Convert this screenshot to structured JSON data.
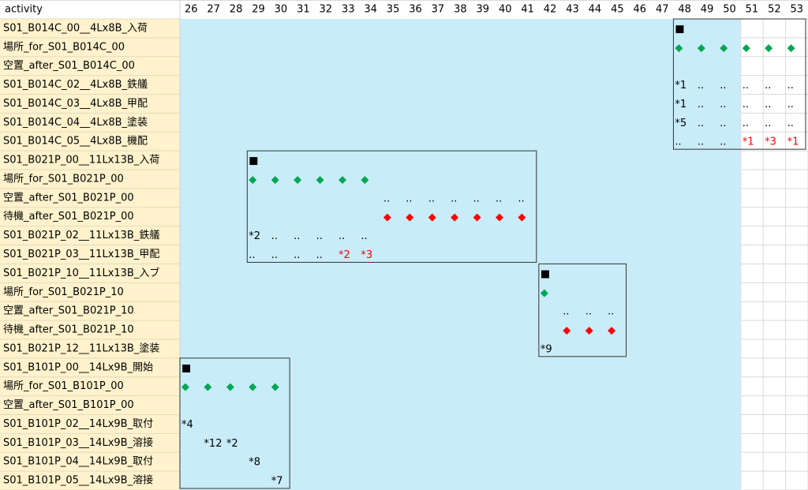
{
  "header": {
    "activity": "activity",
    "days": [
      26,
      27,
      28,
      29,
      30,
      31,
      32,
      33,
      34,
      35,
      36,
      37,
      38,
      39,
      40,
      41,
      42,
      43,
      44,
      45,
      46,
      47,
      48,
      49,
      50,
      51,
      52,
      53
    ]
  },
  "rows": [
    {
      "activity": "S01_B014C_00__4Lx8B_入荷",
      "cells": [
        null,
        null,
        null,
        null,
        null,
        null,
        null,
        null,
        null,
        null,
        null,
        null,
        null,
        null,
        null,
        null,
        null,
        null,
        null,
        null,
        null,
        null,
        "■",
        null,
        null,
        null,
        null,
        null
      ]
    },
    {
      "activity": "場所_for_S01_B014C_00",
      "cells": [
        null,
        null,
        null,
        null,
        null,
        null,
        null,
        null,
        null,
        null,
        null,
        null,
        null,
        null,
        null,
        null,
        null,
        null,
        null,
        null,
        null,
        null,
        {
          "text": "◆",
          "color": "#00a651"
        },
        {
          "text": "◆",
          "color": "#00a651"
        },
        {
          "text": "◆",
          "color": "#00a651"
        },
        {
          "text": "◆",
          "color": "#00a651"
        },
        {
          "text": "◆",
          "color": "#00a651"
        },
        {
          "text": "◆",
          "color": "#00a651"
        }
      ]
    },
    {
      "activity": "空置_after_S01_B014C_00",
      "cells": [
        null,
        null,
        null,
        null,
        null,
        null,
        null,
        null,
        null,
        null,
        null,
        null,
        null,
        null,
        null,
        null,
        null,
        null,
        null,
        null,
        null,
        null,
        null,
        null,
        null,
        null,
        null,
        null
      ]
    },
    {
      "activity": "S01_B014C_02__4Lx8B_鉄艤",
      "cells": [
        null,
        null,
        null,
        null,
        null,
        null,
        null,
        null,
        null,
        null,
        null,
        null,
        null,
        null,
        null,
        null,
        null,
        null,
        null,
        null,
        null,
        null,
        "*1",
        "..",
        "..",
        "..",
        "..",
        ".."
      ]
    },
    {
      "activity": "S01_B014C_03__4Lx8B_甲配",
      "cells": [
        null,
        null,
        null,
        null,
        null,
        null,
        null,
        null,
        null,
        null,
        null,
        null,
        null,
        null,
        null,
        null,
        null,
        null,
        null,
        null,
        null,
        null,
        "*1",
        "..",
        "..",
        "..",
        "..",
        ".."
      ]
    },
    {
      "activity": "S01_B014C_04__4Lx8B_塗装",
      "cells": [
        null,
        null,
        null,
        null,
        null,
        null,
        null,
        null,
        null,
        null,
        null,
        null,
        null,
        null,
        null,
        null,
        null,
        null,
        null,
        null,
        null,
        null,
        "*5",
        "..",
        "..",
        "..",
        "..",
        ".."
      ]
    },
    {
      "activity": "S01_B014C_05__4Lx8B_機配",
      "cells": [
        null,
        null,
        null,
        null,
        null,
        null,
        null,
        null,
        null,
        null,
        null,
        null,
        null,
        null,
        null,
        null,
        null,
        null,
        null,
        null,
        null,
        null,
        "..",
        "..",
        "..",
        {
          "text": "*1",
          "color": "#ff0000"
        },
        {
          "text": "*3",
          "color": "#ff0000"
        },
        {
          "text": "*1",
          "color": "#ff0000"
        }
      ]
    },
    {
      "activity": "S01_B021P_00__11Lx13B_入荷",
      "cells": [
        null,
        null,
        null,
        "■",
        null,
        null,
        null,
        null,
        null,
        null,
        null,
        null,
        null,
        null,
        null,
        null,
        null,
        null,
        null,
        null,
        null,
        null,
        null,
        null,
        null,
        null,
        null,
        null
      ]
    },
    {
      "activity": "場所_for_S01_B021P_00",
      "cells": [
        null,
        null,
        null,
        {
          "text": "◆",
          "color": "#00a651"
        },
        {
          "text": "◆",
          "color": "#00a651"
        },
        {
          "text": "◆",
          "color": "#00a651"
        },
        {
          "text": "◆",
          "color": "#00a651"
        },
        {
          "text": "◆",
          "color": "#00a651"
        },
        {
          "text": "◆",
          "color": "#00a651"
        },
        null,
        null,
        null,
        null,
        null,
        null,
        null,
        null,
        null,
        null,
        null,
        null,
        null,
        null,
        null,
        null,
        null,
        null,
        null
      ]
    },
    {
      "activity": "空置_after_S01_B021P_00",
      "cells": [
        null,
        null,
        null,
        null,
        null,
        null,
        null,
        null,
        null,
        "..",
        "..",
        "..",
        "..",
        "..",
        "..",
        "..",
        null,
        null,
        null,
        null,
        null,
        null,
        null,
        null,
        null,
        null,
        null,
        null
      ]
    },
    {
      "activity": "待機_after_S01_B021P_00",
      "cells": [
        null,
        null,
        null,
        null,
        null,
        null,
        null,
        null,
        null,
        {
          "text": "◆",
          "color": "#ff0000"
        },
        {
          "text": "◆",
          "color": "#ff0000"
        },
        {
          "text": "◆",
          "color": "#ff0000"
        },
        {
          "text": "◆",
          "color": "#ff0000"
        },
        {
          "text": "◆",
          "color": "#ff0000"
        },
        {
          "text": "◆",
          "color": "#ff0000"
        },
        {
          "text": "◆",
          "color": "#ff0000"
        },
        null,
        null,
        null,
        null,
        null,
        null,
        null,
        null,
        null,
        null,
        null,
        null
      ]
    },
    {
      "activity": "S01_B021P_02__11Lx13B_鉄艤",
      "cells": [
        null,
        null,
        null,
        "*2",
        "..",
        "..",
        "..",
        "..",
        "..",
        null,
        null,
        null,
        null,
        null,
        null,
        null,
        null,
        null,
        null,
        null,
        null,
        null,
        null,
        null,
        null,
        null,
        null,
        null
      ]
    },
    {
      "activity": "S01_B021P_03__11Lx13B_甲配",
      "cells": [
        null,
        null,
        null,
        "..",
        "..",
        "..",
        "..",
        {
          "text": "*2",
          "color": "#ff0000"
        },
        {
          "text": "*3",
          "color": "#ff0000"
        },
        null,
        null,
        null,
        null,
        null,
        null,
        null,
        null,
        null,
        null,
        null,
        null,
        null,
        null,
        null,
        null,
        null,
        null,
        null
      ]
    },
    {
      "activity": "S01_B021P_10__11Lx13B_入ブ",
      "cells": [
        null,
        null,
        null,
        null,
        null,
        null,
        null,
        null,
        null,
        null,
        null,
        null,
        null,
        null,
        null,
        null,
        "■",
        null,
        null,
        null,
        null,
        null,
        null,
        null,
        null,
        null,
        null,
        null
      ]
    },
    {
      "activity": "場所_for_S01_B021P_10",
      "cells": [
        null,
        null,
        null,
        null,
        null,
        null,
        null,
        null,
        null,
        null,
        null,
        null,
        null,
        null,
        null,
        null,
        {
          "text": "◆",
          "color": "#00a651"
        },
        null,
        null,
        null,
        null,
        null,
        null,
        null,
        null,
        null,
        null,
        null
      ]
    },
    {
      "activity": "空置_after_S01_B021P_10",
      "cells": [
        null,
        null,
        null,
        null,
        null,
        null,
        null,
        null,
        null,
        null,
        null,
        null,
        null,
        null,
        null,
        null,
        null,
        "..",
        "..",
        "..",
        null,
        null,
        null,
        null,
        null,
        null,
        null,
        null
      ]
    },
    {
      "activity": "待機_after_S01_B021P_10",
      "cells": [
        null,
        null,
        null,
        null,
        null,
        null,
        null,
        null,
        null,
        null,
        null,
        null,
        null,
        null,
        null,
        null,
        null,
        {
          "text": "◆",
          "color": "#ff0000"
        },
        {
          "text": "◆",
          "color": "#ff0000"
        },
        {
          "text": "◆",
          "color": "#ff0000"
        },
        null,
        null,
        null,
        null,
        null,
        null,
        null,
        null
      ]
    },
    {
      "activity": "S01_B021P_12__11Lx13B_塗装",
      "cells": [
        null,
        null,
        null,
        null,
        null,
        null,
        null,
        null,
        null,
        null,
        null,
        null,
        null,
        null,
        null,
        null,
        "*9",
        null,
        null,
        null,
        null,
        null,
        null,
        null,
        null,
        null,
        null,
        null
      ]
    },
    {
      "activity": "S01_B101P_00__14Lx9B_開始",
      "cells": [
        "■",
        null,
        null,
        null,
        null,
        null,
        null,
        null,
        null,
        null,
        null,
        null,
        null,
        null,
        null,
        null,
        null,
        null,
        null,
        null,
        null,
        null,
        null,
        null,
        null,
        null,
        null,
        null
      ]
    },
    {
      "activity": "場所_for_S01_B101P_00",
      "cells": [
        {
          "text": "◆",
          "color": "#00a651"
        },
        {
          "text": "◆",
          "color": "#00a651"
        },
        {
          "text": "◆",
          "color": "#00a651"
        },
        {
          "text": "◆",
          "color": "#00a651"
        },
        {
          "text": "◆",
          "color": "#00a651"
        },
        null,
        null,
        null,
        null,
        null,
        null,
        null,
        null,
        null,
        null,
        null,
        null,
        null,
        null,
        null,
        null,
        null,
        null,
        null,
        null,
        null,
        null,
        null
      ]
    },
    {
      "activity": "空置_after_S01_B101P_00",
      "cells": [
        null,
        null,
        null,
        null,
        null,
        null,
        null,
        null,
        null,
        null,
        null,
        null,
        null,
        null,
        null,
        null,
        null,
        null,
        null,
        null,
        null,
        null,
        null,
        null,
        null,
        null,
        null,
        null
      ]
    },
    {
      "activity": "S01_B101P_02__14Lx9B_取付",
      "cells": [
        "*4",
        null,
        null,
        null,
        null,
        null,
        null,
        null,
        null,
        null,
        null,
        null,
        null,
        null,
        null,
        null,
        null,
        null,
        null,
        null,
        null,
        null,
        null,
        null,
        null,
        null,
        null,
        null
      ]
    },
    {
      "activity": "S01_B101P_03__14Lx9B_溶接",
      "cells": [
        null,
        "*12",
        "*2",
        null,
        null,
        null,
        null,
        null,
        null,
        null,
        null,
        null,
        null,
        null,
        null,
        null,
        null,
        null,
        null,
        null,
        null,
        null,
        null,
        null,
        null,
        null,
        null,
        null
      ]
    },
    {
      "activity": "S01_B101P_04__14Lx9B_取付",
      "cells": [
        null,
        null,
        null,
        "*8",
        null,
        null,
        null,
        null,
        null,
        null,
        null,
        null,
        null,
        null,
        null,
        null,
        null,
        null,
        null,
        null,
        null,
        null,
        null,
        null,
        null,
        null,
        null,
        null
      ]
    },
    {
      "activity": "S01_B101P_05__14Lx9B_溶接",
      "cells": [
        null,
        null,
        null,
        null,
        "*7",
        null,
        null,
        null,
        null,
        null,
        null,
        null,
        null,
        null,
        null,
        null,
        null,
        null,
        null,
        null,
        null,
        null,
        null,
        null,
        null,
        null,
        null,
        null
      ]
    }
  ]
}
